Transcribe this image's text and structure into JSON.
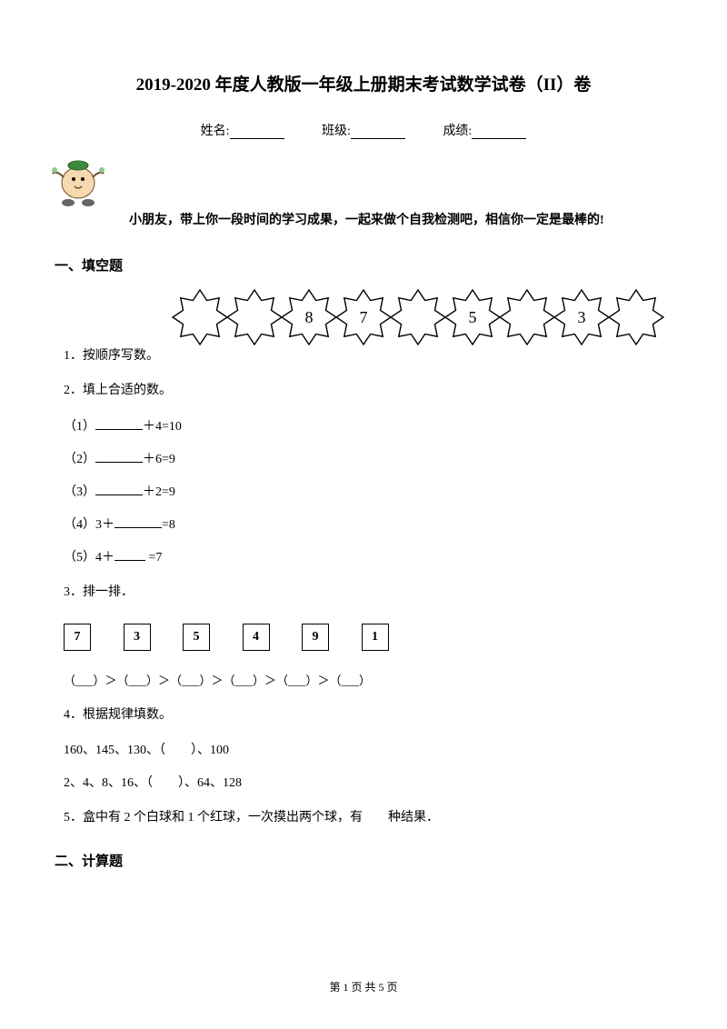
{
  "title": "2019-2020 年度人教版一年级上册期末考试数学试卷（II）卷",
  "info": {
    "name_label": "姓名:",
    "class_label": "班级:",
    "score_label": "成绩:"
  },
  "encourage": "小朋友，带上你一段时间的学习成果，一起来做个自我检测吧，相信你一定是最棒的!",
  "section1": "一、填空题",
  "q1": {
    "label": "1．按顺序写数。",
    "stars": [
      "",
      "",
      "8",
      "7",
      "",
      "5",
      "",
      "3",
      ""
    ]
  },
  "q2": {
    "label": "2．填上合适的数。",
    "subs": [
      "（1）________＋4=10",
      "（2）________＋6=9",
      "（3）________＋2=9",
      "（4）3＋________=8",
      "（5）4＋_____ =7"
    ]
  },
  "q3": {
    "label": "3．排一排．",
    "boxes": [
      "7",
      "3",
      "5",
      "4",
      "9",
      "1"
    ],
    "paren": "（___）＞（___）＞（___）＞（___）＞（___）＞（___）"
  },
  "q4": {
    "label": "4．根据规律填数。",
    "line1": "160、145、130、（　　）、100",
    "line2": "2、4、8、16、（　　）、64、128"
  },
  "q5": {
    "label_a": "5．盒中有 2 个白球和 1 个红球，一次摸出两个球，有",
    "label_b": "种结果．"
  },
  "section2": "二、计算题",
  "footer": "第 1 页 共 5 页"
}
